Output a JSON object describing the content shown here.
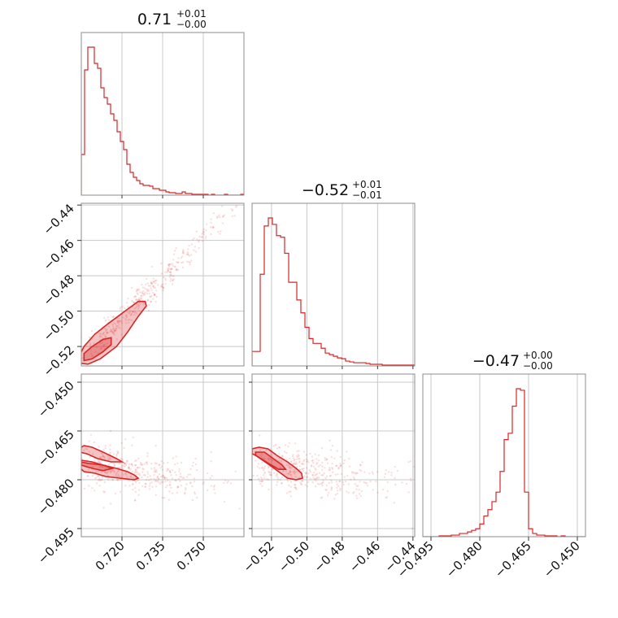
{
  "chart_data": {
    "type": "corner",
    "color": "#d62728",
    "grid": true,
    "parameters": [
      {
        "title": {
          "median": "0.71",
          "plus": "+0.01",
          "minus": "−0.00"
        },
        "range": [
          0.705,
          0.765
        ],
        "ticks": [
          0.72,
          0.735,
          0.75
        ],
        "tick_labels": [
          "0.720",
          "0.735",
          "0.750"
        ]
      },
      {
        "title": {
          "median": "−0.52",
          "plus": "+0.01",
          "minus": "−0.01"
        },
        "range": [
          -0.531,
          -0.439
        ],
        "ticks": [
          -0.52,
          -0.5,
          -0.48,
          -0.46,
          -0.44
        ],
        "tick_labels": [
          "−0.52",
          "−0.50",
          "−0.48",
          "−0.46",
          "−0.44"
        ]
      },
      {
        "title": {
          "median": "−0.47",
          "plus": "+0.00",
          "minus": "−0.00"
        },
        "range": [
          -0.4975,
          -0.4475
        ],
        "ticks": [
          -0.495,
          -0.48,
          -0.465,
          -0.45
        ],
        "tick_labels": [
          "−0.495",
          "−0.480",
          "−0.465",
          "−0.450"
        ]
      }
    ],
    "histograms": [
      {
        "param": 0,
        "bin_edges": [
          0.705,
          0.765
        ],
        "counts": [
          0.25,
          0.77,
          0.91,
          0.91,
          0.81,
          0.78,
          0.66,
          0.6,
          0.56,
          0.5,
          0.46,
          0.39,
          0.33,
          0.28,
          0.19,
          0.14,
          0.11,
          0.09,
          0.07,
          0.06,
          0.06,
          0.055,
          0.04,
          0.04,
          0.03,
          0.03,
          0.02,
          0.015,
          0.015,
          0.01,
          0.01,
          0.02,
          0.01,
          0.01,
          0.005,
          0.005,
          0.005,
          0.005,
          0.005,
          0.0,
          0.005,
          0.0,
          0.0,
          0.0,
          0.005,
          0.0,
          0.0,
          0.0,
          0.0,
          0.005
        ]
      },
      {
        "param": 1,
        "bin_edges": [
          -0.531,
          -0.439
        ],
        "counts": [
          0.09,
          0.09,
          0.57,
          0.87,
          0.92,
          0.88,
          0.81,
          0.8,
          0.7,
          0.52,
          0.52,
          0.41,
          0.33,
          0.24,
          0.17,
          0.14,
          0.14,
          0.11,
          0.08,
          0.07,
          0.06,
          0.05,
          0.045,
          0.03,
          0.025,
          0.02,
          0.02,
          0.02,
          0.015,
          0.01,
          0.01,
          0.01,
          0.005,
          0.005,
          0.005,
          0.005,
          0.005,
          0.005,
          0.005,
          0.005
        ]
      },
      {
        "param": 2,
        "bin_edges": [
          -0.4975,
          -0.4475
        ],
        "counts": [
          0.0,
          0.0,
          0.0,
          0.0,
          0.005,
          0.005,
          0.005,
          0.01,
          0.01,
          0.02,
          0.02,
          0.03,
          0.04,
          0.05,
          0.08,
          0.13,
          0.17,
          0.22,
          0.28,
          0.41,
          0.61,
          0.65,
          0.82,
          0.93,
          0.92,
          0.28,
          0.05,
          0.02,
          0.01,
          0.01,
          0.005,
          0.005,
          0.005,
          0.0,
          0.005,
          0.0,
          0.0,
          0.0,
          0.0,
          0.0
        ]
      }
    ],
    "scatter_panels": [
      {
        "x_param": 0,
        "y_param": 1,
        "contour_outer": [
          [
            0.7045,
            -0.5295
          ],
          [
            0.7075,
            -0.53
          ],
          [
            0.712,
            -0.527
          ],
          [
            0.718,
            -0.52
          ],
          [
            0.722,
            -0.512
          ],
          [
            0.726,
            -0.503
          ],
          [
            0.729,
            -0.497
          ],
          [
            0.7285,
            -0.4945
          ],
          [
            0.726,
            -0.4945
          ],
          [
            0.722,
            -0.499
          ],
          [
            0.715,
            -0.507
          ],
          [
            0.71,
            -0.513
          ],
          [
            0.706,
            -0.52
          ],
          [
            0.704,
            -0.526
          ]
        ],
        "contour_inner": [
          [
            0.706,
            -0.528
          ],
          [
            0.709,
            -0.527
          ],
          [
            0.713,
            -0.523
          ],
          [
            0.716,
            -0.519
          ],
          [
            0.716,
            -0.515
          ],
          [
            0.713,
            -0.516
          ],
          [
            0.709,
            -0.52
          ],
          [
            0.706,
            -0.524
          ]
        ]
      },
      {
        "x_param": 0,
        "y_param": 2,
        "contour_outer": [
          [
            0.7045,
            -0.4745
          ],
          [
            0.708,
            -0.475
          ],
          [
            0.713,
            -0.4755
          ],
          [
            0.718,
            -0.4765
          ],
          [
            0.722,
            -0.4775
          ],
          [
            0.7245,
            -0.4785
          ],
          [
            0.726,
            -0.4795
          ],
          [
            0.7245,
            -0.48
          ],
          [
            0.719,
            -0.4795
          ],
          [
            0.714,
            -0.479
          ],
          [
            0.71,
            -0.478
          ],
          [
            0.706,
            -0.4775
          ],
          [
            0.704,
            -0.476
          ],
          [
            0.704,
            -0.4705
          ],
          [
            0.706,
            -0.4695
          ],
          [
            0.709,
            -0.47
          ],
          [
            0.713,
            -0.4715
          ],
          [
            0.718,
            -0.4735
          ],
          [
            0.72,
            -0.4745
          ],
          [
            0.716,
            -0.4745
          ],
          [
            0.711,
            -0.4735
          ],
          [
            0.707,
            -0.472
          ],
          [
            0.7045,
            -0.4715
          ]
        ],
        "contour_inner": [
          [
            0.705,
            -0.474
          ],
          [
            0.709,
            -0.4745
          ],
          [
            0.713,
            -0.4755
          ],
          [
            0.7165,
            -0.4765
          ],
          [
            0.713,
            -0.4772
          ],
          [
            0.709,
            -0.4765
          ],
          [
            0.705,
            -0.4755
          ]
        ]
      },
      {
        "x_param": 1,
        "y_param": 2,
        "contour_outer": [
          [
            -0.531,
            -0.4705
          ],
          [
            -0.527,
            -0.47
          ],
          [
            -0.522,
            -0.4705
          ],
          [
            -0.517,
            -0.4725
          ],
          [
            -0.511,
            -0.4745
          ],
          [
            -0.506,
            -0.4765
          ],
          [
            -0.503,
            -0.478
          ],
          [
            -0.5025,
            -0.4795
          ],
          [
            -0.506,
            -0.48
          ],
          [
            -0.511,
            -0.4795
          ],
          [
            -0.516,
            -0.4775
          ],
          [
            -0.521,
            -0.4755
          ],
          [
            -0.525,
            -0.474
          ],
          [
            -0.529,
            -0.4725
          ],
          [
            -0.531,
            -0.472
          ]
        ],
        "contour_inner": [
          [
            -0.529,
            -0.4715
          ],
          [
            -0.524,
            -0.4715
          ],
          [
            -0.519,
            -0.4735
          ],
          [
            -0.514,
            -0.4755
          ],
          [
            -0.512,
            -0.4768
          ],
          [
            -0.516,
            -0.4768
          ],
          [
            -0.521,
            -0.4752
          ],
          [
            -0.526,
            -0.4735
          ],
          [
            -0.529,
            -0.4725
          ]
        ]
      }
    ]
  }
}
